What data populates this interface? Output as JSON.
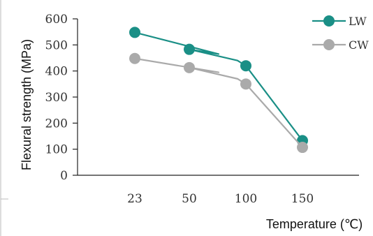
{
  "chart_data": {
    "type": "line",
    "title": "",
    "xlabel": "Temperature (℃)",
    "ylabel": "Flexural strength (MPa)",
    "categories": [
      "23",
      "50",
      "100",
      "150"
    ],
    "ylim": [
      0,
      600
    ],
    "yticks": [
      "0",
      "100",
      "200",
      "300",
      "400",
      "500",
      "600"
    ],
    "grid": false,
    "legend_position": "top-right",
    "series": [
      {
        "name": "LW",
        "color": "#1a8f86",
        "values": [
          548,
          483,
          420,
          133
        ]
      },
      {
        "name": "CW",
        "color": "#aaaaaa",
        "values": [
          448,
          413,
          350,
          107
        ]
      }
    ]
  }
}
